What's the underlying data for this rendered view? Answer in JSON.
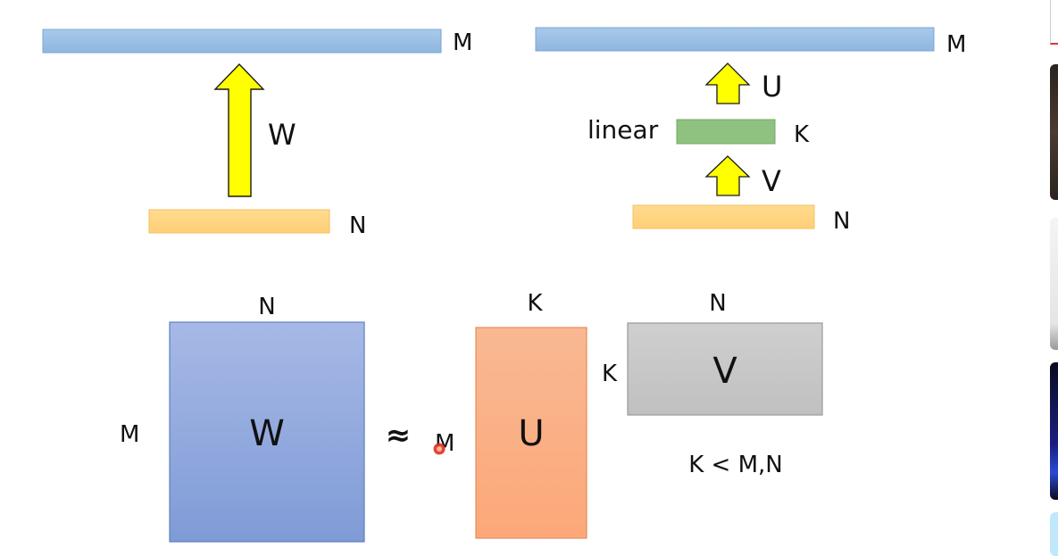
{
  "top_left": {
    "output_label": "M",
    "transform_label": "W",
    "input_label": "N"
  },
  "top_right": {
    "output_label": "M",
    "upper_transform_label": "U",
    "hidden_side_label": "linear",
    "hidden_label": "K",
    "lower_transform_label": "V",
    "input_label": "N"
  },
  "matrices": {
    "w": {
      "label": "W",
      "top_label": "N",
      "side_label": "M"
    },
    "approx_symbol": "≈",
    "u": {
      "label": "U",
      "top_label": "K",
      "side_label": "M"
    },
    "v": {
      "label": "V",
      "top_label": "N",
      "side_label": "K"
    },
    "condition": "K < M,N"
  },
  "colors": {
    "bar_blue": "#9dc3e6",
    "bar_orange": "#ffd47f",
    "bar_green": "#8fc280",
    "arrow_yellow": "#ffff00",
    "matrix_w": "#8fa6dc",
    "matrix_u": "#fbae86",
    "matrix_v": "#c7c7c7",
    "pointer_red": "#e0311e"
  },
  "icons": [
    "laser-pointer-icon"
  ]
}
